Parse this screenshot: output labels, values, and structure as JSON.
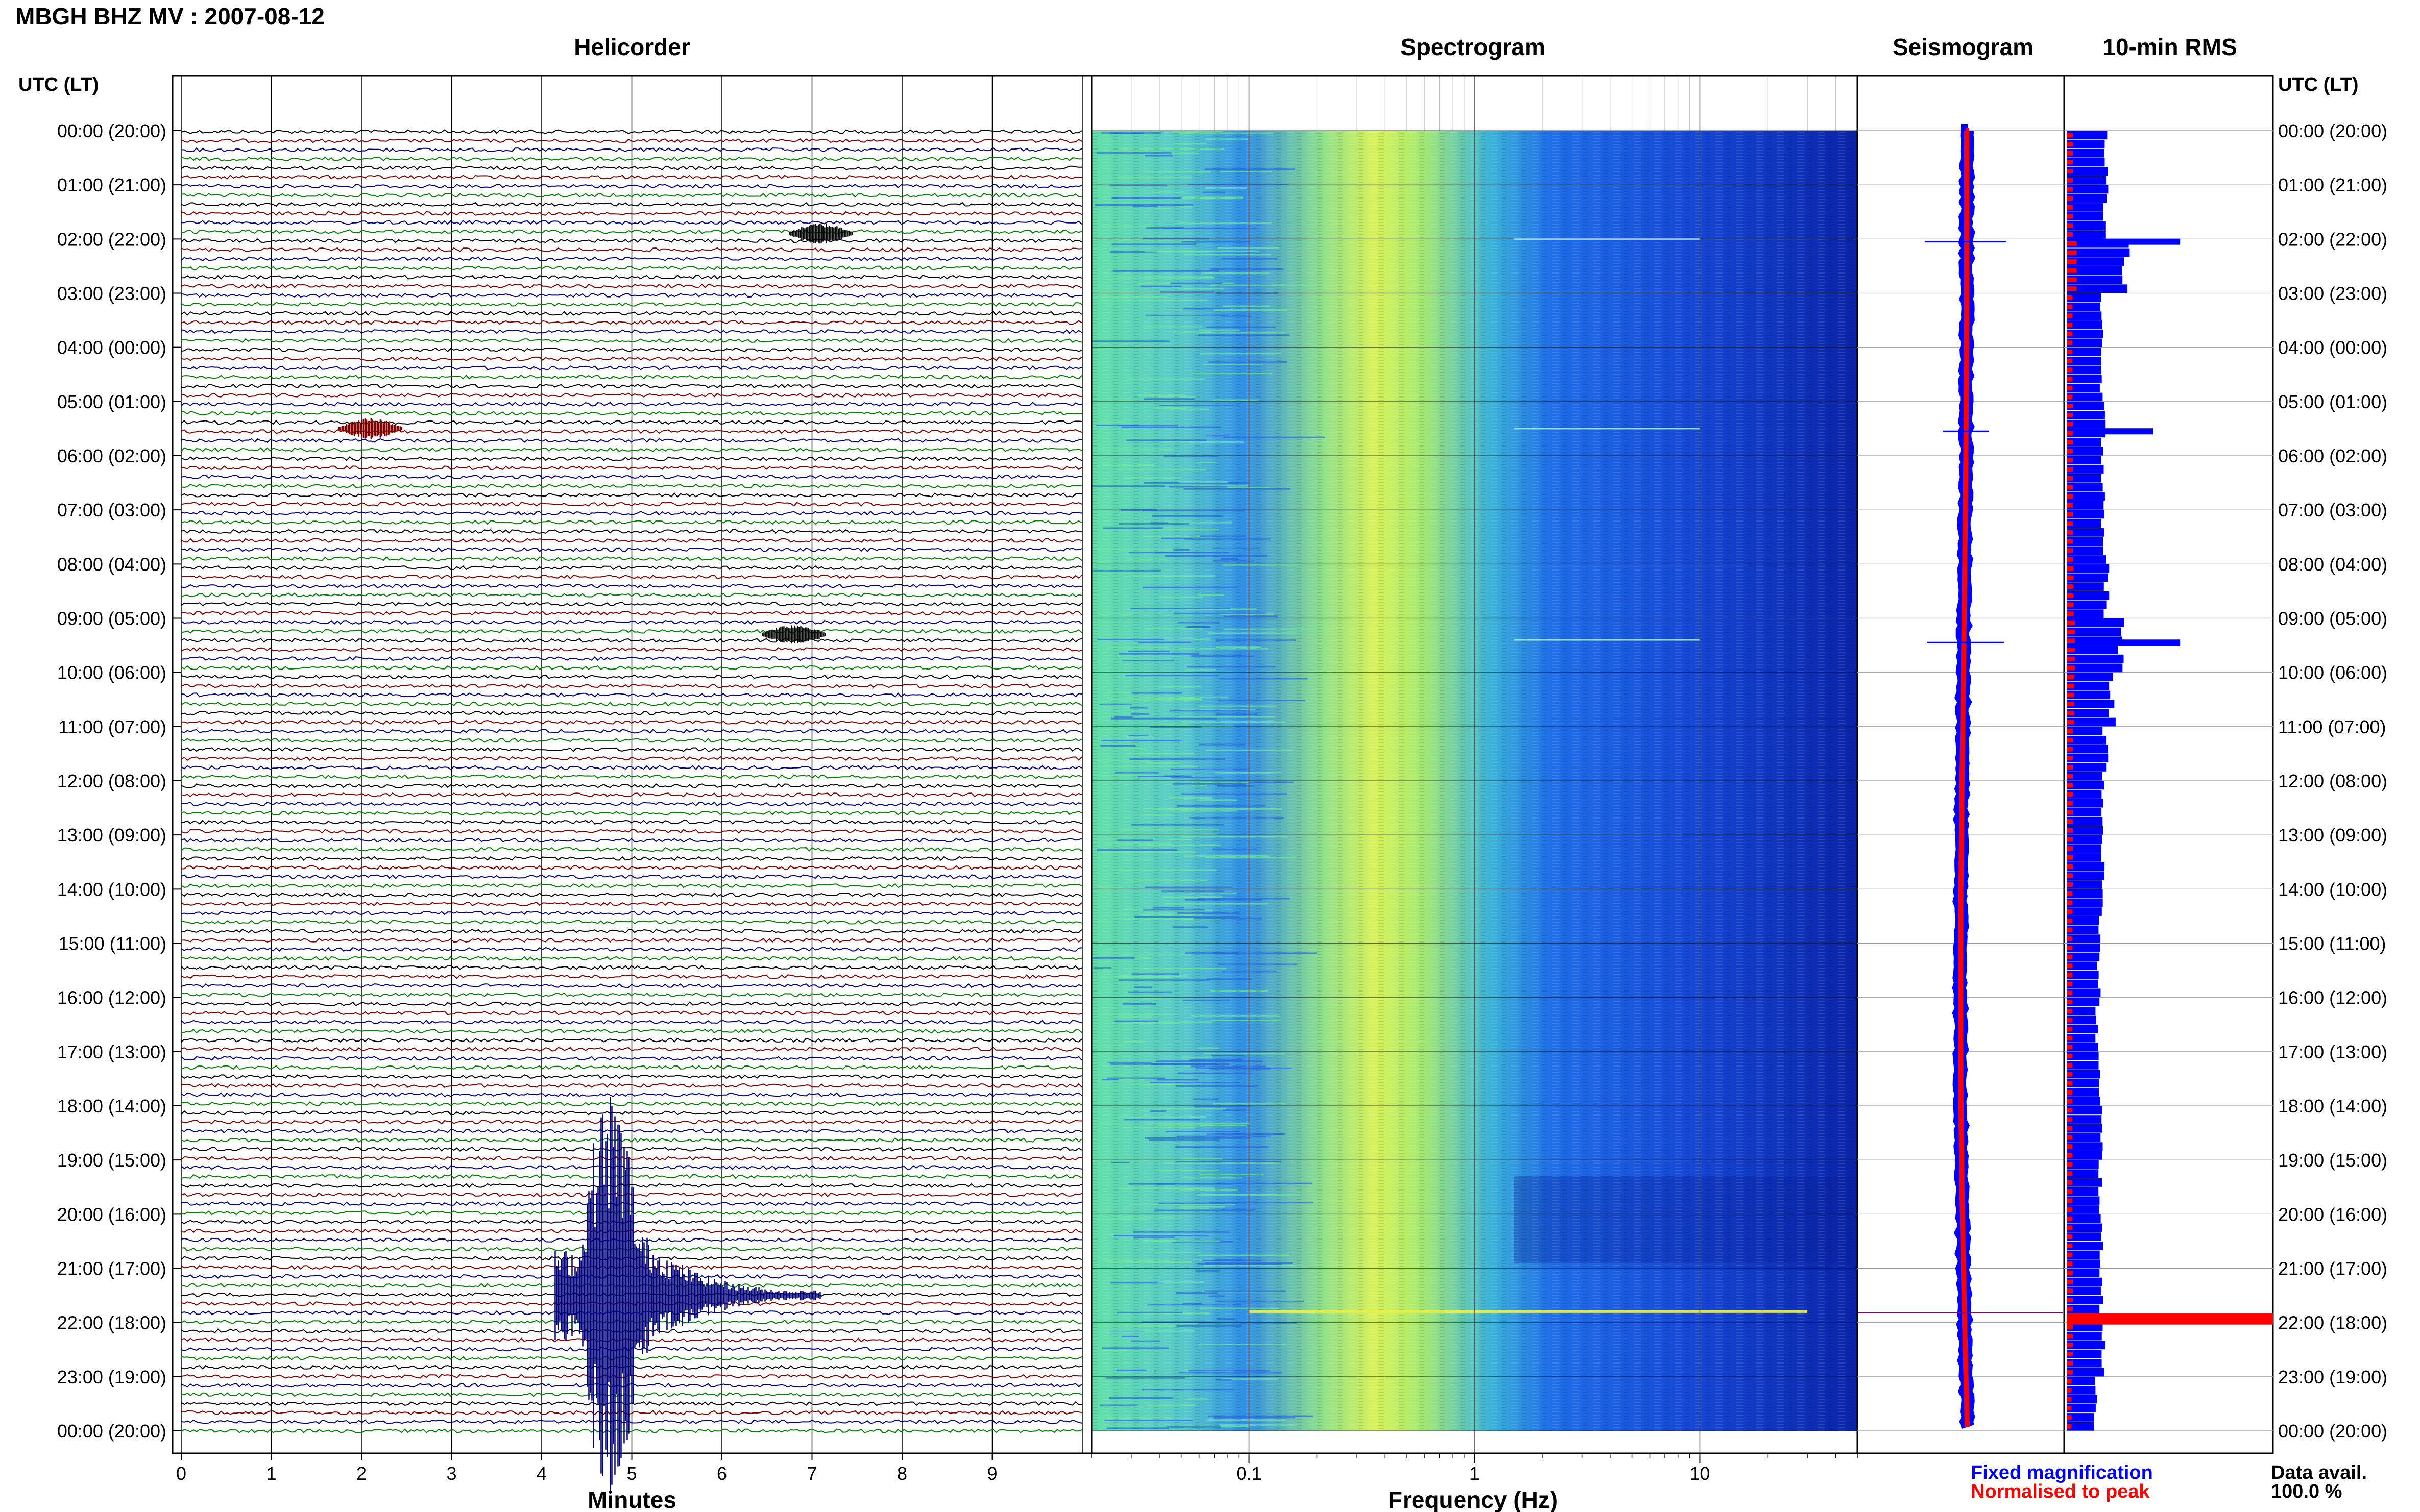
{
  "title": "MBGH BHZ MV : 2007-08-12",
  "panels": {
    "helicorder": "Helicorder",
    "spectrogram": "Spectrogram",
    "seismogram": "Seismogram",
    "rms": "10-min RMS"
  },
  "utc_header_left": "UTC (LT)",
  "utc_header_right": "UTC (LT)",
  "time_labels": [
    "00:00 (20:00)",
    "01:00 (21:00)",
    "02:00 (22:00)",
    "03:00 (23:00)",
    "04:00 (00:00)",
    "05:00 (01:00)",
    "06:00 (02:00)",
    "07:00 (03:00)",
    "08:00 (04:00)",
    "09:00 (05:00)",
    "10:00 (06:00)",
    "11:00 (07:00)",
    "12:00 (08:00)",
    "13:00 (09:00)",
    "14:00 (10:00)",
    "15:00 (11:00)",
    "16:00 (12:00)",
    "17:00 (13:00)",
    "18:00 (14:00)",
    "19:00 (15:00)",
    "20:00 (16:00)",
    "21:00 (17:00)",
    "22:00 (18:00)",
    "23:00 (19:00)",
    "00:00 (20:00)"
  ],
  "helicorder_axis": {
    "label": "Minutes",
    "ticks": [
      "0",
      "1",
      "2",
      "3",
      "4",
      "5",
      "6",
      "7",
      "8",
      "9"
    ]
  },
  "spectrogram_axis": {
    "label": "Frequency (Hz)",
    "ticks": [
      "0.1",
      "1",
      "10"
    ],
    "scale": "log"
  },
  "legend": {
    "fixed": "Fixed magnification",
    "fixed_color": "#0000ff",
    "normalised": "Normalised to peak",
    "normalised_color": "#ff0000"
  },
  "data_avail": {
    "label": "Data avail.",
    "value": "100.0 %"
  },
  "colors": {
    "trace_cycle": [
      "#000000",
      "#800000",
      "#000080",
      "#008000"
    ],
    "event": "#00007a"
  },
  "chart_data": {
    "type": "heatmap",
    "station": "MBGH BHZ MV",
    "date": "2007-08-12",
    "helicorder": {
      "x_range_minutes": [
        0,
        10
      ],
      "lines": 144,
      "events": [
        {
          "utc_hour": 1.9,
          "minute": 7.0,
          "amplitude": "small"
        },
        {
          "utc_hour": 5.5,
          "minute": 2.0,
          "amplitude": "small"
        },
        {
          "utc_hour": 9.3,
          "minute": 6.7,
          "amplitude": "small"
        },
        {
          "utc_hour": 21.5,
          "minute": 4.5,
          "amplitude": "large"
        }
      ]
    },
    "spectrogram": {
      "frequency_range_hz": [
        0.02,
        50
      ],
      "peak_energy_band_hz": [
        0.2,
        0.6
      ],
      "transient_lines_utc_hour": [
        2.0,
        5.5,
        9.4,
        21.8
      ]
    },
    "rms_10min": {
      "hours": [
        0,
        1,
        2,
        3,
        4,
        5,
        6,
        7,
        8,
        9,
        10,
        11,
        12,
        13,
        14,
        15,
        16,
        17,
        18,
        19,
        20,
        21,
        22,
        23
      ],
      "fixed": [
        0.36,
        0.34,
        0.52,
        0.3,
        0.3,
        0.32,
        0.33,
        0.33,
        0.35,
        0.48,
        0.4,
        0.34,
        0.33,
        0.32,
        0.3,
        0.28,
        0.27,
        0.28,
        0.3,
        0.3,
        0.3,
        0.32,
        1.0,
        0.26
      ],
      "normalised": [
        0.1,
        0.1,
        0.16,
        0.09,
        0.09,
        0.1,
        0.1,
        0.1,
        0.11,
        0.13,
        0.12,
        0.1,
        0.1,
        0.1,
        0.09,
        0.09,
        0.09,
        0.09,
        0.09,
        0.09,
        0.09,
        0.1,
        1.0,
        0.08
      ]
    }
  }
}
